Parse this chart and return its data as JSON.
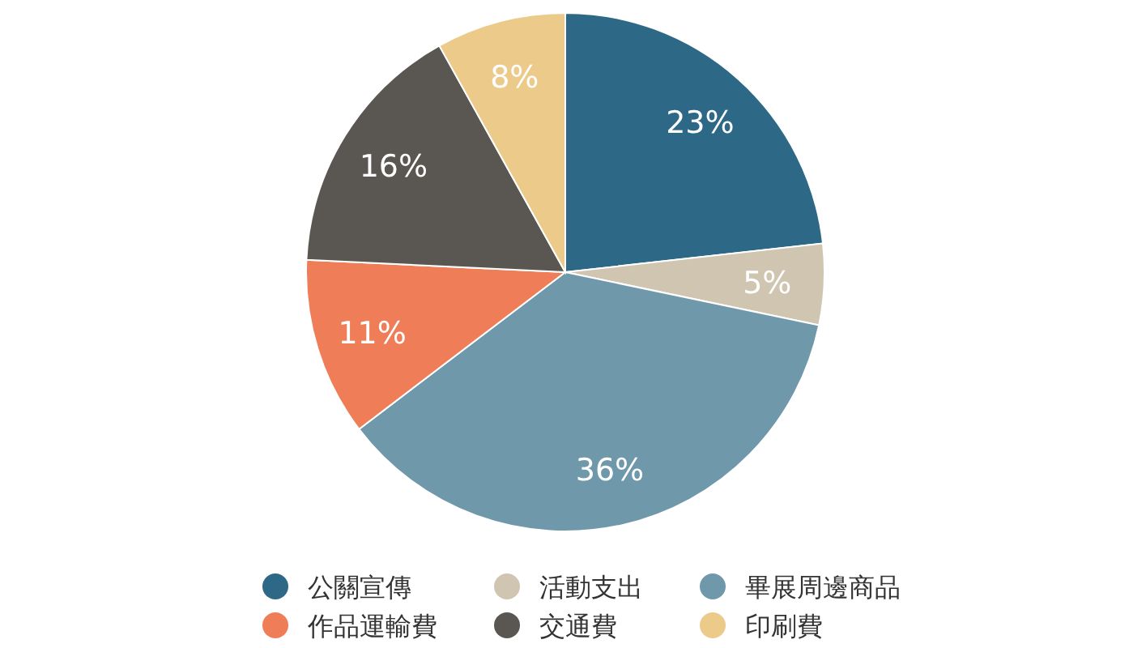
{
  "chart_data": {
    "type": "pie",
    "categories": [
      "公關宣傳",
      "活動支出",
      "畢展周邊商品",
      "作品運輸費",
      "交通費",
      "印刷費"
    ],
    "values": [
      23,
      5,
      36,
      11,
      16,
      8
    ],
    "value_labels": [
      "23%",
      "5%",
      "36%",
      "11%",
      "16%",
      "8%"
    ],
    "colors": [
      "#2d6886",
      "#d0c5b0",
      "#6f99ab",
      "#ef7d57",
      "#5a5752",
      "#ecca8a"
    ],
    "legend": "bottom"
  }
}
